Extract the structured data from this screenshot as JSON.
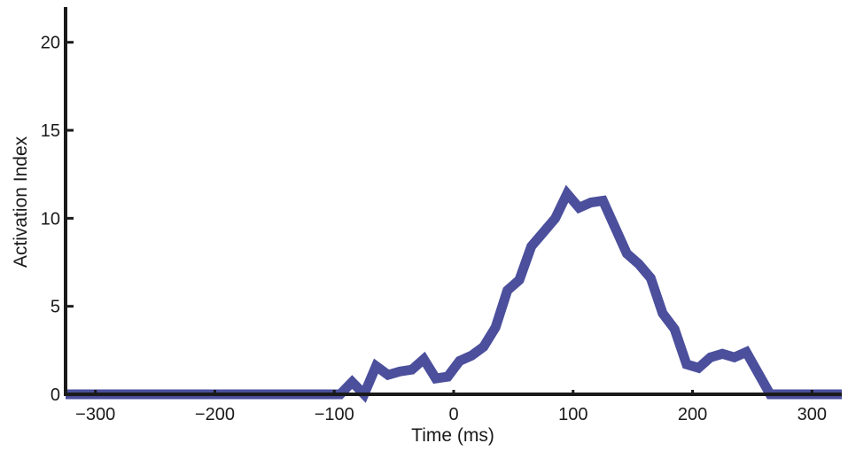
{
  "chart_data": {
    "type": "line",
    "title": "",
    "xlabel": "Time (ms)",
    "ylabel": "Activation Index",
    "xlim": [
      -325,
      325
    ],
    "ylim": [
      0,
      22
    ],
    "x_ticks": [
      -300,
      -200,
      -100,
      0,
      100,
      200,
      300
    ],
    "x_tick_labels": [
      "−300",
      "−200",
      "−100",
      "0",
      "100",
      "200",
      "300"
    ],
    "y_ticks": [
      0,
      5,
      10,
      15,
      20
    ],
    "y_tick_labels": [
      "0",
      "5",
      "10",
      "15",
      "20"
    ],
    "grid": false,
    "legend": "none",
    "line_color": "#4b4f9c",
    "series": [
      {
        "x": [
          -325,
          -95,
          -85,
          -75,
          -65,
          -55,
          -45,
          -35,
          -25,
          -15,
          -5,
          5,
          15,
          25,
          35,
          45,
          55,
          65,
          75,
          85,
          95,
          105,
          115,
          125,
          135,
          145,
          155,
          165,
          175,
          185,
          195,
          205,
          215,
          225,
          235,
          245,
          255,
          265,
          325
        ],
        "y": [
          0,
          0,
          0.7,
          0,
          1.6,
          1.1,
          1.3,
          1.4,
          2.0,
          0.9,
          1.0,
          1.9,
          2.2,
          2.7,
          3.8,
          5.9,
          6.5,
          8.4,
          9.2,
          10.0,
          11.4,
          10.6,
          10.9,
          11.0,
          9.5,
          8.0,
          7.4,
          6.6,
          4.6,
          3.7,
          1.7,
          1.5,
          2.1,
          2.3,
          2.1,
          2.4,
          1.2,
          0,
          0
        ]
      }
    ]
  }
}
